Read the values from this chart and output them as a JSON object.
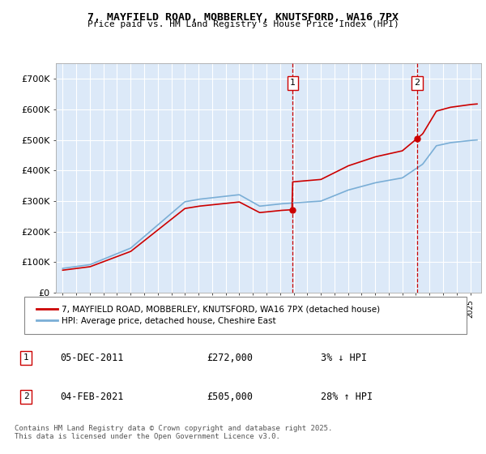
{
  "title_line1": "7, MAYFIELD ROAD, MOBBERLEY, KNUTSFORD, WA16 7PX",
  "title_line2": "Price paid vs. HM Land Registry's House Price Index (HPI)",
  "legend_label_red": "7, MAYFIELD ROAD, MOBBERLEY, KNUTSFORD, WA16 7PX (detached house)",
  "legend_label_blue": "HPI: Average price, detached house, Cheshire East",
  "annotation1_date": "05-DEC-2011",
  "annotation1_price": "£272,000",
  "annotation1_change": "3% ↓ HPI",
  "annotation2_date": "04-FEB-2021",
  "annotation2_price": "£505,000",
  "annotation2_change": "28% ↑ HPI",
  "footer": "Contains HM Land Registry data © Crown copyright and database right 2025.\nThis data is licensed under the Open Government Licence v3.0.",
  "ylim": [
    0,
    750000
  ],
  "yticks": [
    0,
    100000,
    200000,
    300000,
    400000,
    500000,
    600000,
    700000
  ],
  "ytick_labels": [
    "£0",
    "£100K",
    "£200K",
    "£300K",
    "£400K",
    "£500K",
    "£600K",
    "£700K"
  ],
  "background_color": "#dce9f8",
  "grid_color": "#ffffff",
  "red_color": "#cc0000",
  "blue_color": "#7aaed6",
  "sale1_year": 2011.92,
  "sale1_value": 272000,
  "sale2_year": 2021.09,
  "sale2_value": 505000,
  "xlim_left": 1994.5,
  "xlim_right": 2025.8
}
